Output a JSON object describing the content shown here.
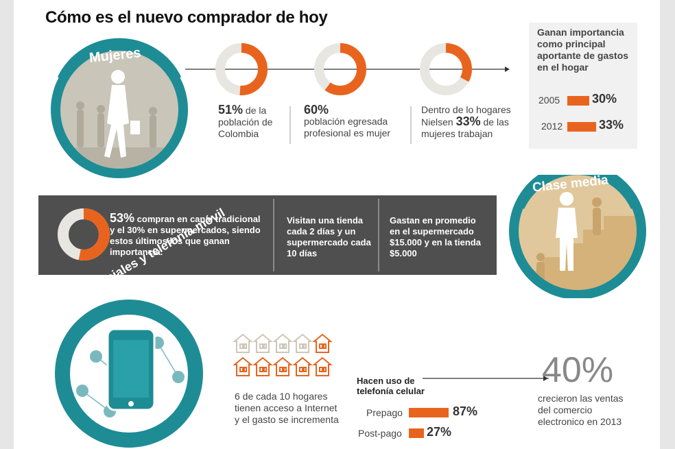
{
  "title": "Cómo es el nuevo comprador de hoy",
  "colors": {
    "accent": "#e8641e",
    "teal": "#1e8c95",
    "dark": "#4f4f4f"
  },
  "mujeres": {
    "label": "Mujeres",
    "donut1": {
      "pct": "51%",
      "rest": " de la población de Colombia",
      "value": 51
    },
    "donut2": {
      "pct": "60%",
      "rest": "población egresada profesional es mujer",
      "value": 60
    },
    "donut3": {
      "pre": "Dentro de lo hogares Nielsen ",
      "pct": "33%",
      "rest": " de las mujeres trabajan",
      "value": 33
    }
  },
  "importancia": {
    "title": "Ganan importancia como principal aportante de gastos en el hogar",
    "rows": [
      {
        "year": "2005",
        "pct": "30%",
        "value": 30
      },
      {
        "year": "2012",
        "pct": "33%",
        "value": 33
      }
    ]
  },
  "clase_media": {
    "label": "Clase media",
    "col1": {
      "pct": "53%",
      "text": " compran en canal tradicional y el 30% en supermercados, siendo estos últimos los que ganan importancia.",
      "value": 53
    },
    "col2": "Visitan una tienda cada 2 días y un supermercado cada 10 días",
    "col3": "Gastan en promedio en el supermercado $15.000 y en la tienda $5.000"
  },
  "redes": {
    "label": "Redes sociales y telefonía móvil",
    "hogares_text": "6 de cada 10 hogares tienen acceso a Internet y el gasto se incrementa",
    "hogares_total": 10,
    "hogares_highlight": 6,
    "telefonia_title": "Hacen uso de telefonía celular",
    "telefonia": [
      {
        "label": "Prepago",
        "pct": "87%",
        "value": 87
      },
      {
        "label": "Post-pago",
        "pct": "27%",
        "value": 27
      }
    ],
    "big_pct": "40%",
    "big_text": "crecieron las ventas del comercio electronico en 2013"
  }
}
